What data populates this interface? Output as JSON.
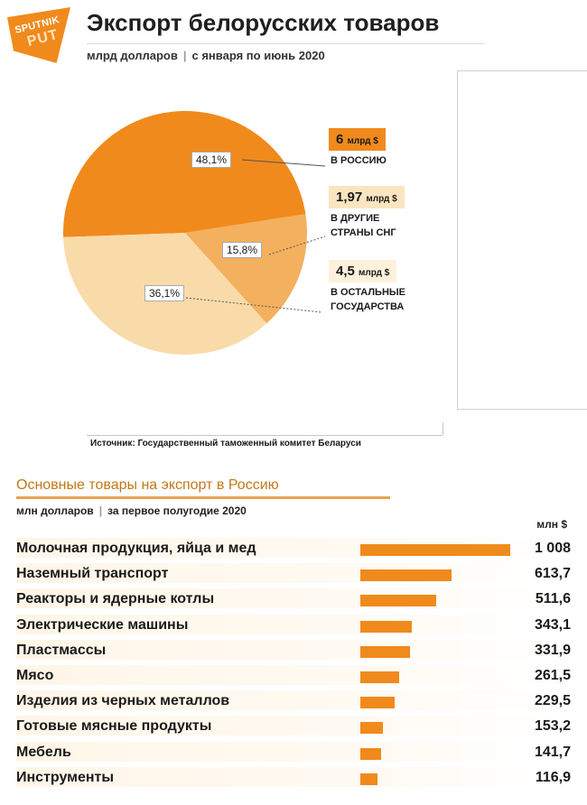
{
  "header": {
    "logo_line1": "SPUTNIK",
    "logo_line2": "PUT",
    "title": "Экспорт белорусских товаров",
    "subtitle_unit": "млрд долларов",
    "subtitle_period": "с января по июнь 2020",
    "separator": "|"
  },
  "pie": {
    "type": "pie",
    "slices": [
      {
        "label_pct": "48,1%",
        "value": 48.1,
        "amount": "6",
        "amount_unit": "млрд $",
        "name": "В РОССИЮ",
        "color": "#f08a1c"
      },
      {
        "label_pct": "15,8%",
        "value": 15.8,
        "amount": "1,97",
        "amount_unit": "млрд $",
        "name_line1": "В ДРУГИЕ",
        "name_line2": "СТРАНЫ СНГ",
        "color": "#f3b05e"
      },
      {
        "label_pct": "36,1%",
        "value": 36.1,
        "amount": "4,5",
        "amount_unit": "млрд $",
        "name_line1": "В ОСТАЛЬНЫЕ",
        "name_line2": "ГОСУДАРСТВА",
        "color": "#f9dba9"
      }
    ]
  },
  "source": "Источник: Государственный таможенный комитет Беларуси",
  "chart_data": {
    "type": "bar",
    "title": "Основные товары на экспорт в Россию",
    "subtitle_unit": "млн долларов",
    "subtitle_period": "за первое полугодие 2020",
    "unit_label": "млн $",
    "categories": [
      "Молочная продукция, яйца и мед",
      "Наземный транспорт",
      "Реакторы и ядерные котлы",
      "Электрические машины",
      "Пластмассы",
      "Мясо",
      "Изделия из черных металлов",
      "Готовые мясные продукты",
      "Мебель",
      "Инструменты"
    ],
    "values": [
      1008,
      613.7,
      511.6,
      343.1,
      331.9,
      261.5,
      229.5,
      153.2,
      141.7,
      116.9
    ],
    "value_labels": [
      "1 008",
      "613,7",
      "511,6",
      "343,1",
      "331,9",
      "261,5",
      "229,5",
      "153,2",
      "141,7",
      "116,9"
    ],
    "bar_color": "#f08a1c",
    "xlim": [
      0,
      1008
    ]
  }
}
